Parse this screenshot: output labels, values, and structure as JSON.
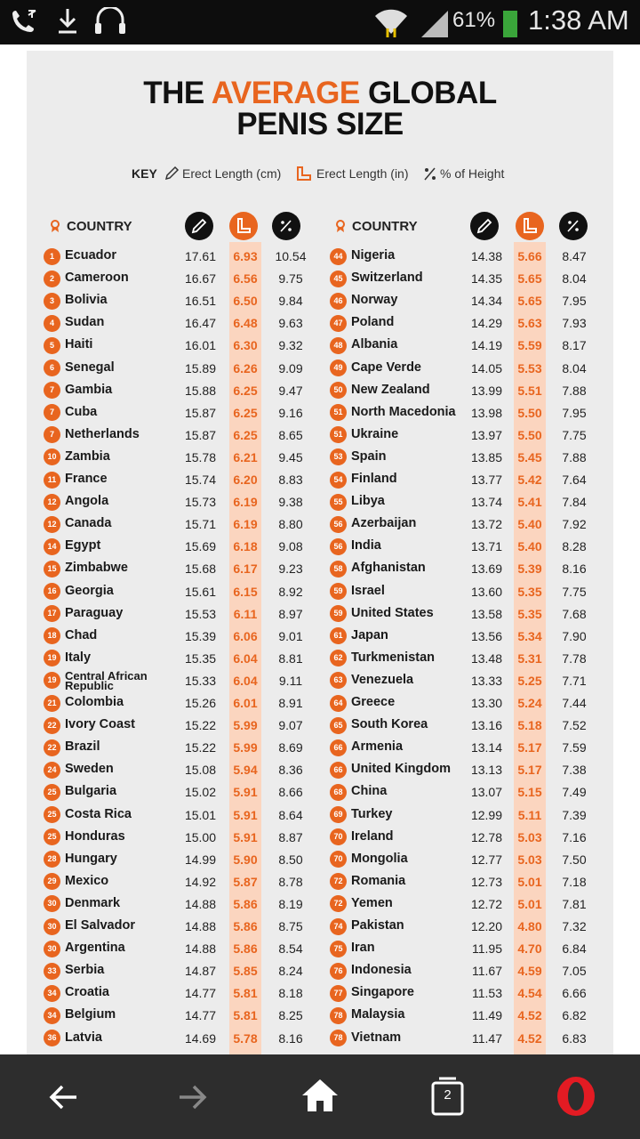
{
  "status_bar": {
    "battery": "61%",
    "time": "1:38 AM"
  },
  "browser": {
    "tab_count": "2"
  },
  "infographic": {
    "title": [
      "THE",
      "AVERAGE",
      "GLOBAL",
      "PENIS SIZE"
    ],
    "key": {
      "label": "KEY",
      "cm": "Erect Length (cm)",
      "in": "Erect Length (in)",
      "pct": "% of Height"
    },
    "headers": [
      "COUNTRY",
      "COUNTRY"
    ],
    "left_rows": [
      [
        "1",
        "Ecuador",
        "17.61",
        "6.93",
        "10.54"
      ],
      [
        "2",
        "Cameroon",
        "16.67",
        "6.56",
        "9.75"
      ],
      [
        "3",
        "Bolivia",
        "16.51",
        "6.50",
        "9.84"
      ],
      [
        "4",
        "Sudan",
        "16.47",
        "6.48",
        "9.63"
      ],
      [
        "5",
        "Haiti",
        "16.01",
        "6.30",
        "9.32"
      ],
      [
        "6",
        "Senegal",
        "15.89",
        "6.26",
        "9.09"
      ],
      [
        "7",
        "Gambia",
        "15.88",
        "6.25",
        "9.47"
      ],
      [
        "7",
        "Cuba",
        "15.87",
        "6.25",
        "9.16"
      ],
      [
        "7",
        "Netherlands",
        "15.87",
        "6.25",
        "8.65"
      ],
      [
        "10",
        "Zambia",
        "15.78",
        "6.21",
        "9.45"
      ],
      [
        "11",
        "France",
        "15.74",
        "6.20",
        "8.83"
      ],
      [
        "12",
        "Angola",
        "15.73",
        "6.19",
        "9.38"
      ],
      [
        "12",
        "Canada",
        "15.71",
        "6.19",
        "8.80"
      ],
      [
        "14",
        "Egypt",
        "15.69",
        "6.18",
        "9.08"
      ],
      [
        "15",
        "Zimbabwe",
        "15.68",
        "6.17",
        "9.23"
      ],
      [
        "16",
        "Georgia",
        "15.61",
        "6.15",
        "8.92"
      ],
      [
        "17",
        "Paraguay",
        "15.53",
        "6.11",
        "8.97"
      ],
      [
        "18",
        "Chad",
        "15.39",
        "6.06",
        "9.01"
      ],
      [
        "19",
        "Italy",
        "15.35",
        "6.04",
        "8.81"
      ],
      [
        "19",
        "Central African Republic",
        "15.33",
        "6.04",
        "9.11"
      ],
      [
        "21",
        "Colombia",
        "15.26",
        "6.01",
        "8.91"
      ],
      [
        "22",
        "Ivory Coast",
        "15.22",
        "5.99",
        "9.07"
      ],
      [
        "22",
        "Brazil",
        "15.22",
        "5.99",
        "8.69"
      ],
      [
        "24",
        "Sweden",
        "15.08",
        "5.94",
        "8.36"
      ],
      [
        "25",
        "Bulgaria",
        "15.02",
        "5.91",
        "8.66"
      ],
      [
        "25",
        "Costa Rica",
        "15.01",
        "5.91",
        "8.64"
      ],
      [
        "25",
        "Honduras",
        "15.00",
        "5.91",
        "8.87"
      ],
      [
        "28",
        "Hungary",
        "14.99",
        "5.90",
        "8.50"
      ],
      [
        "29",
        "Mexico",
        "14.92",
        "5.87",
        "8.78"
      ],
      [
        "30",
        "Denmark",
        "14.88",
        "5.86",
        "8.19"
      ],
      [
        "30",
        "El Salvador",
        "14.88",
        "5.86",
        "8.75"
      ],
      [
        "30",
        "Argentina",
        "14.88",
        "5.86",
        "8.54"
      ],
      [
        "33",
        "Serbia",
        "14.87",
        "5.85",
        "8.24"
      ],
      [
        "34",
        "Croatia",
        "14.77",
        "5.81",
        "8.18"
      ],
      [
        "34",
        "Belgium",
        "14.77",
        "5.81",
        "8.25"
      ],
      [
        "36",
        "Latvia",
        "14.69",
        "5.78",
        "8.16"
      ]
    ],
    "right_rows": [
      [
        "44",
        "Nigeria",
        "14.38",
        "5.66",
        "8.47"
      ],
      [
        "45",
        "Switzerland",
        "14.35",
        "5.65",
        "8.04"
      ],
      [
        "46",
        "Norway",
        "14.34",
        "5.65",
        "7.95"
      ],
      [
        "47",
        "Poland",
        "14.29",
        "5.63",
        "7.93"
      ],
      [
        "48",
        "Albania",
        "14.19",
        "5.59",
        "8.17"
      ],
      [
        "49",
        "Cape Verde",
        "14.05",
        "5.53",
        "8.04"
      ],
      [
        "50",
        "New Zealand",
        "13.99",
        "5.51",
        "7.88"
      ],
      [
        "51",
        "North Macedonia",
        "13.98",
        "5.50",
        "7.95"
      ],
      [
        "51",
        "Ukraine",
        "13.97",
        "5.50",
        "7.75"
      ],
      [
        "53",
        "Spain",
        "13.85",
        "5.45",
        "7.88"
      ],
      [
        "54",
        "Finland",
        "13.77",
        "5.42",
        "7.64"
      ],
      [
        "55",
        "Libya",
        "13.74",
        "5.41",
        "7.84"
      ],
      [
        "56",
        "Azerbaijan",
        "13.72",
        "5.40",
        "7.92"
      ],
      [
        "56",
        "India",
        "13.71",
        "5.40",
        "8.28"
      ],
      [
        "58",
        "Afghanistan",
        "13.69",
        "5.39",
        "8.16"
      ],
      [
        "59",
        "Israel",
        "13.60",
        "5.35",
        "7.75"
      ],
      [
        "59",
        "United States",
        "13.58",
        "5.35",
        "7.68"
      ],
      [
        "61",
        "Japan",
        "13.56",
        "5.34",
        "7.90"
      ],
      [
        "62",
        "Turkmenistan",
        "13.48",
        "5.31",
        "7.78"
      ],
      [
        "63",
        "Venezuela",
        "13.33",
        "5.25",
        "7.71"
      ],
      [
        "64",
        "Greece",
        "13.30",
        "5.24",
        "7.44"
      ],
      [
        "65",
        "South Korea",
        "13.16",
        "5.18",
        "7.52"
      ],
      [
        "66",
        "Armenia",
        "13.14",
        "5.17",
        "7.59"
      ],
      [
        "66",
        "United Kingdom",
        "13.13",
        "5.17",
        "7.38"
      ],
      [
        "68",
        "China",
        "13.07",
        "5.15",
        "7.49"
      ],
      [
        "69",
        "Turkey",
        "12.99",
        "5.11",
        "7.39"
      ],
      [
        "70",
        "Ireland",
        "12.78",
        "5.03",
        "7.16"
      ],
      [
        "70",
        "Mongolia",
        "12.77",
        "5.03",
        "7.50"
      ],
      [
        "72",
        "Romania",
        "12.73",
        "5.01",
        "7.18"
      ],
      [
        "72",
        "Yemen",
        "12.72",
        "5.01",
        "7.81"
      ],
      [
        "74",
        "Pakistan",
        "12.20",
        "4.80",
        "7.32"
      ],
      [
        "75",
        "Iran",
        "11.95",
        "4.70",
        "6.84"
      ],
      [
        "76",
        "Indonesia",
        "11.67",
        "4.59",
        "7.05"
      ],
      [
        "77",
        "Singapore",
        "11.53",
        "4.54",
        "6.66"
      ],
      [
        "78",
        "Malaysia",
        "11.49",
        "4.52",
        "6.82"
      ],
      [
        "78",
        "Vietnam",
        "11.47",
        "4.52",
        "6.83"
      ]
    ]
  }
}
